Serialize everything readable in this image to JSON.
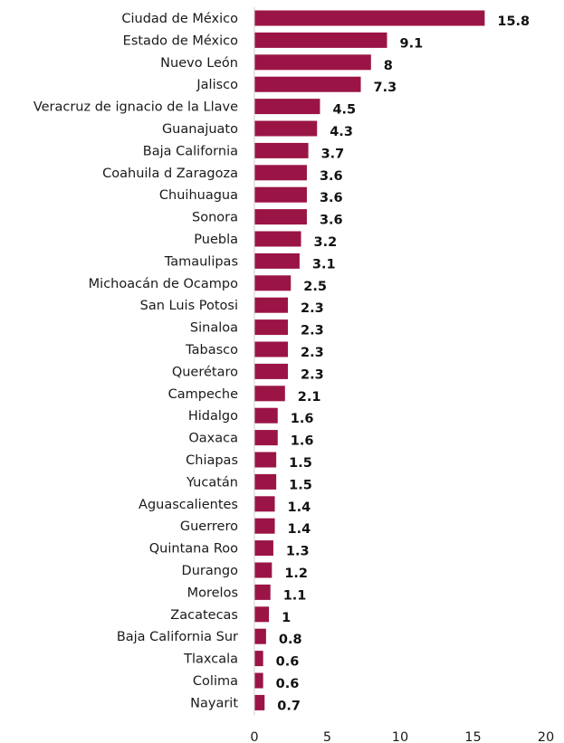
{
  "chart_data": {
    "type": "bar",
    "orientation": "horizontal",
    "title": "",
    "xlabel": "",
    "ylabel": "",
    "xlim": [
      0,
      20
    ],
    "xticks": [
      0,
      5,
      10,
      15,
      20
    ],
    "grid": false,
    "bar_color": "#9b1446",
    "categories": [
      "Ciudad de México",
      "Estado de México",
      "Nuevo León",
      "Jalisco",
      "Veracruz de ignacio de la Llave",
      "Guanajuato",
      "Baja California",
      "Coahuila d Zaragoza",
      "Chuihuagua",
      "Sonora",
      "Puebla",
      "Tamaulipas",
      "Michoacán de Ocampo",
      "San Luis Potosi",
      "Sinaloa",
      "Tabasco",
      "Querétaro",
      "Campeche",
      "Hidalgo",
      "Oaxaca",
      "Chiapas",
      "Yucatán",
      "Aguascalientes",
      "Guerrero",
      "Quintana Roo",
      "Durango",
      "Morelos",
      "Zacatecas",
      "Baja California Sur",
      "Tlaxcala",
      "Colima",
      "Nayarit"
    ],
    "values": [
      15.8,
      9.1,
      8,
      7.3,
      4.5,
      4.3,
      3.7,
      3.6,
      3.6,
      3.6,
      3.2,
      3.1,
      2.5,
      2.3,
      2.3,
      2.3,
      2.3,
      2.1,
      1.6,
      1.6,
      1.5,
      1.5,
      1.4,
      1.4,
      1.3,
      1.2,
      1.1,
      1,
      0.8,
      0.6,
      0.6,
      0.7
    ]
  }
}
